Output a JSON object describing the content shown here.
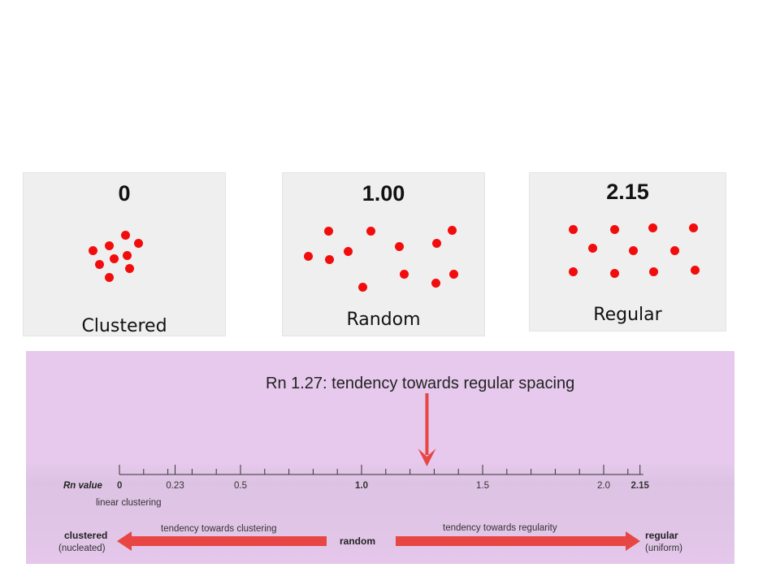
{
  "panels": [
    {
      "value": "0",
      "label": "Clustered"
    },
    {
      "value": "1.00",
      "label": "Random"
    },
    {
      "value": "2.15",
      "label": "Regular"
    }
  ],
  "scale": {
    "headline": "Rn 1.27: tendency towards regular spacing",
    "axis_label": "Rn value",
    "marker_value": 1.27,
    "tick_labels": [
      "0",
      "0.23",
      "0.5",
      "1.0",
      "1.5",
      "2.0",
      "2.15"
    ],
    "bold_tick_labels": [
      "0",
      "1.0",
      "2.15"
    ],
    "sub_label": "linear clustering",
    "left_end_label": "clustered",
    "left_end_sub": "(nucleated)",
    "left_tendency": "tendency towards clustering",
    "center_label": "random",
    "right_tendency": "tendency towards regularity",
    "right_end_label": "regular",
    "right_end_sub": "(uniform)"
  },
  "colors": {
    "dot": "#f20d0d",
    "arrow": "#e84545",
    "scale_background": "#e6c9ec",
    "panel_background": "#efefef"
  }
}
